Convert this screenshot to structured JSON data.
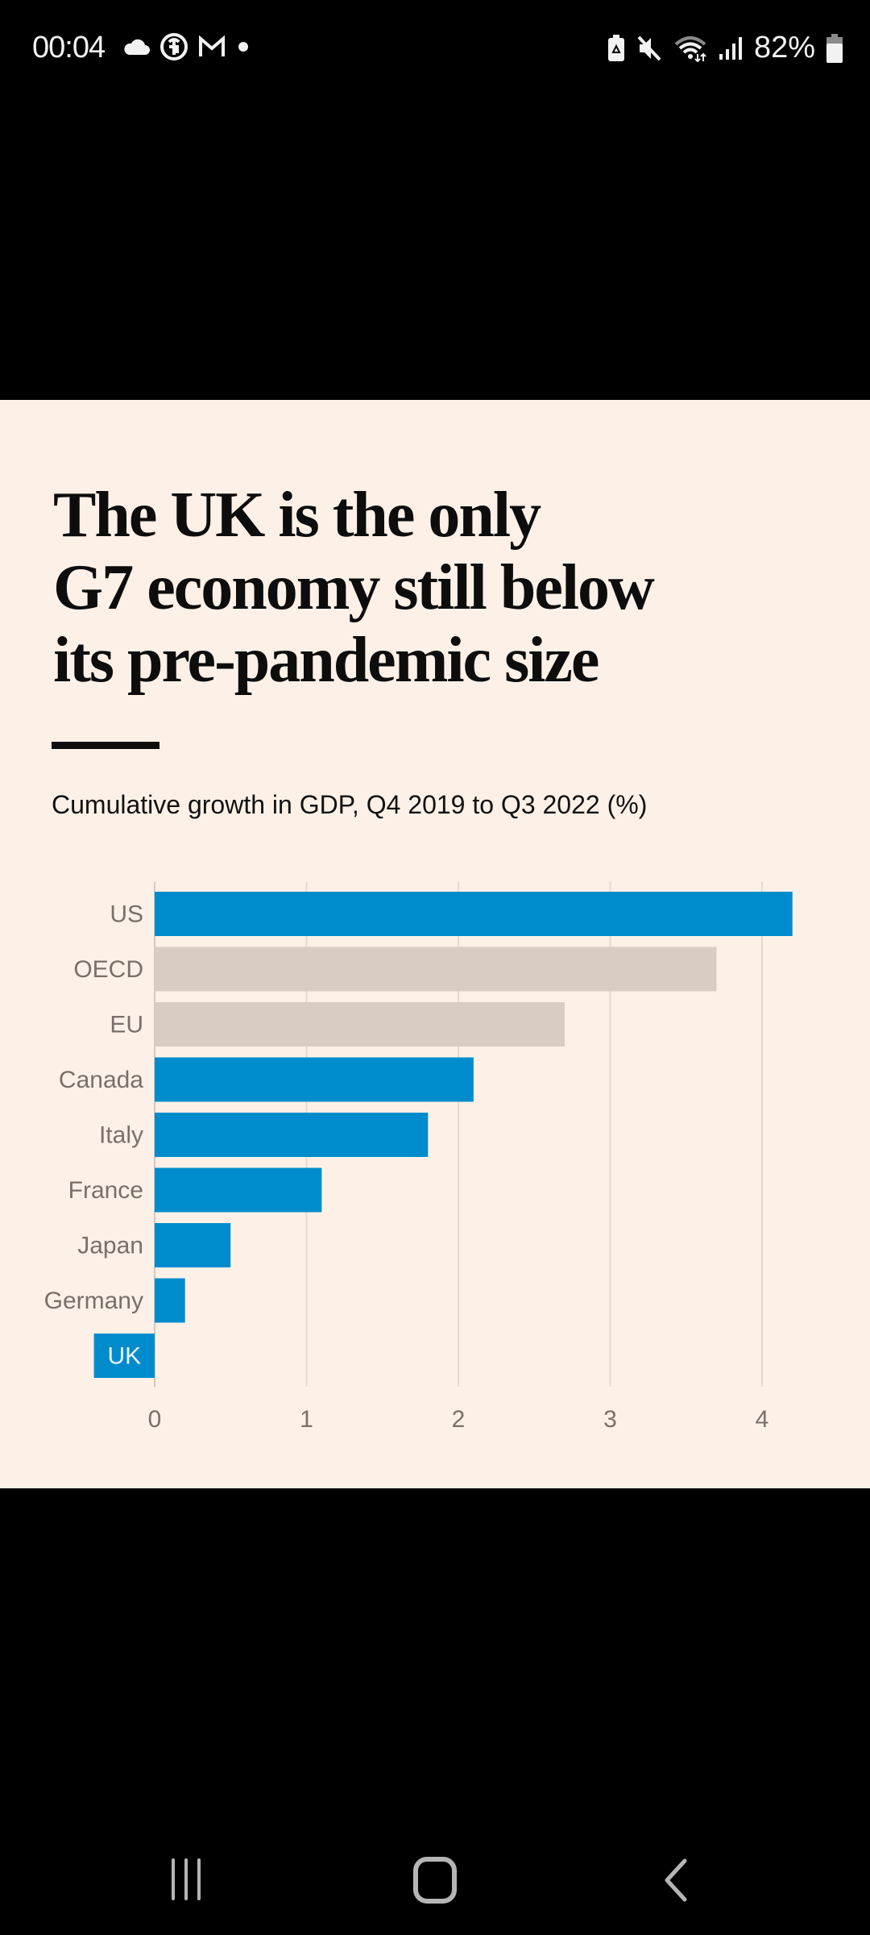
{
  "status_bar": {
    "time": "00:04",
    "left_icons": [
      "cloud-icon",
      "browser-icon",
      "gmail-icon",
      "dot-icon"
    ],
    "right_icons": [
      "battery-saver-icon",
      "mute-icon",
      "wifi-icon",
      "signal-icon"
    ],
    "battery_percent": "82%"
  },
  "article": {
    "headline": "The UK is the only G7 economy still below its pre-pandemic size",
    "subtitle": "Cumulative growth in GDP, Q4 2019 to Q3 2022 (%)"
  },
  "colors": {
    "highlight_bar": "#008ccc",
    "aggregate_bar": "#d9ccc2",
    "background": "#fdf1e7",
    "grid": "#e5d8cd",
    "tick_text": "#7a6f69"
  },
  "chart_data": {
    "type": "bar",
    "orientation": "horizontal",
    "title": "Cumulative growth in GDP, Q4 2019 to Q3 2022 (%)",
    "xlabel": "",
    "ylabel": "",
    "categories": [
      "US",
      "OECD",
      "EU",
      "Canada",
      "Italy",
      "France",
      "Japan",
      "Germany",
      "UK"
    ],
    "values": [
      4.2,
      3.7,
      2.7,
      2.1,
      1.8,
      1.1,
      0.5,
      0.2,
      -0.4
    ],
    "bar_groups": [
      "country",
      "aggregate",
      "aggregate",
      "country",
      "country",
      "country",
      "country",
      "country",
      "country"
    ],
    "xlim": [
      -0.5,
      4.4
    ],
    "xticks": [
      0,
      1,
      2,
      3,
      4
    ],
    "grid": true,
    "highlighted_category": "UK"
  },
  "nav_bar": {
    "buttons": [
      "recent-apps",
      "home",
      "back"
    ]
  }
}
